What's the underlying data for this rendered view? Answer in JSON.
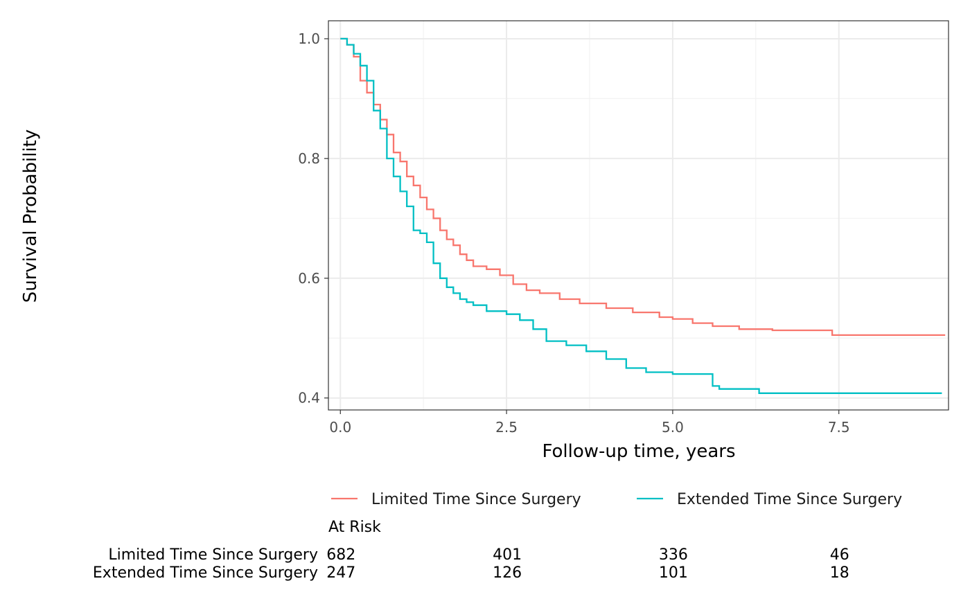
{
  "chart_data": {
    "type": "line",
    "subtype": "kaplan-meier step",
    "title": "",
    "xlabel": "Follow-up time, years",
    "ylabel": "Survival Probability",
    "xlim": [
      -0.18,
      9.15
    ],
    "ylim": [
      0.38,
      1.03
    ],
    "xticks": [
      0.0,
      2.5,
      5.0,
      7.5
    ],
    "xtick_labels": [
      "0.0",
      "2.5",
      "5.0",
      "7.5"
    ],
    "yticks": [
      0.4,
      0.6,
      0.8,
      1.0
    ],
    "ytick_labels": [
      "0.4",
      "0.6",
      "0.8",
      "1.0"
    ],
    "grid": true,
    "legend_position": "bottom",
    "series": [
      {
        "name": "Limited Time Since Surgery",
        "color": "#F8766D",
        "x": [
          0.0,
          0.1,
          0.2,
          0.3,
          0.4,
          0.5,
          0.6,
          0.7,
          0.8,
          0.9,
          1.0,
          1.1,
          1.2,
          1.3,
          1.4,
          1.5,
          1.6,
          1.7,
          1.8,
          1.9,
          2.0,
          2.2,
          2.4,
          2.6,
          2.8,
          3.0,
          3.3,
          3.6,
          4.0,
          4.4,
          4.8,
          5.0,
          5.3,
          5.6,
          6.0,
          6.5,
          7.0,
          7.4,
          8.0,
          8.6,
          9.1
        ],
        "y": [
          1.0,
          0.99,
          0.97,
          0.93,
          0.91,
          0.89,
          0.865,
          0.84,
          0.81,
          0.795,
          0.77,
          0.755,
          0.735,
          0.715,
          0.7,
          0.68,
          0.665,
          0.655,
          0.64,
          0.63,
          0.62,
          0.615,
          0.605,
          0.59,
          0.58,
          0.575,
          0.565,
          0.558,
          0.55,
          0.543,
          0.535,
          0.532,
          0.525,
          0.52,
          0.515,
          0.513,
          0.513,
          0.505,
          0.505,
          0.505,
          0.505
        ]
      },
      {
        "name": "Extended Time Since Surgery",
        "color": "#00BFC4",
        "x": [
          0.0,
          0.1,
          0.2,
          0.3,
          0.4,
          0.5,
          0.6,
          0.7,
          0.8,
          0.9,
          1.0,
          1.1,
          1.2,
          1.3,
          1.4,
          1.5,
          1.6,
          1.7,
          1.8,
          1.9,
          2.0,
          2.2,
          2.5,
          2.7,
          2.9,
          3.1,
          3.4,
          3.7,
          4.0,
          4.3,
          4.6,
          5.0,
          5.3,
          5.5,
          5.6,
          5.7,
          6.0,
          6.3,
          7.0,
          8.0,
          9.05
        ],
        "y": [
          1.0,
          0.99,
          0.975,
          0.955,
          0.93,
          0.88,
          0.85,
          0.8,
          0.77,
          0.745,
          0.72,
          0.68,
          0.675,
          0.66,
          0.625,
          0.6,
          0.585,
          0.575,
          0.565,
          0.56,
          0.555,
          0.545,
          0.54,
          0.53,
          0.515,
          0.495,
          0.488,
          0.478,
          0.465,
          0.45,
          0.443,
          0.44,
          0.44,
          0.44,
          0.42,
          0.415,
          0.415,
          0.408,
          0.408,
          0.408,
          0.408
        ]
      }
    ],
    "at_risk": {
      "title": "At Risk",
      "times": [
        0.0,
        2.5,
        5.0,
        7.5
      ],
      "rows": [
        {
          "label": "Limited Time Since Surgery",
          "counts": [
            "682",
            "401",
            "336",
            "46"
          ]
        },
        {
          "label": "Extended Time Since Surgery",
          "counts": [
            "247",
            "126",
            "101",
            "18"
          ]
        }
      ]
    }
  }
}
